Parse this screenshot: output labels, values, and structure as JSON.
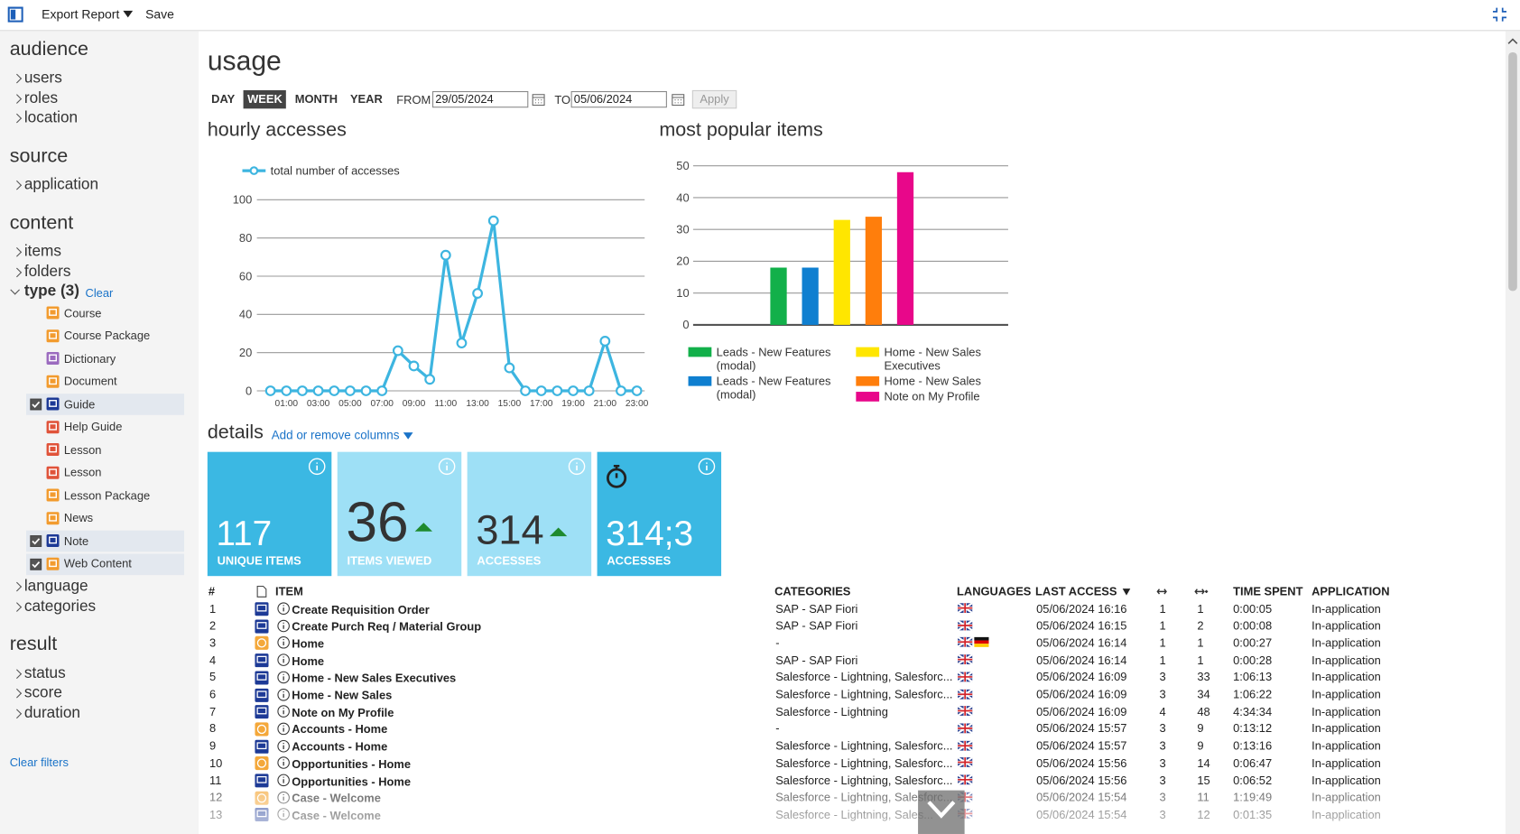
{
  "toolbar": {
    "export": "Export Report",
    "save": "Save"
  },
  "sidebar": {
    "sections": [
      {
        "title": "audience",
        "items": [
          "users",
          "roles",
          "location"
        ]
      },
      {
        "title": "source",
        "items": [
          "application"
        ]
      },
      {
        "title": "content",
        "items": [
          "items",
          "folders"
        ],
        "type": {
          "label": "type (3)",
          "clear": "Clear",
          "options": [
            {
              "label": "Course",
              "color": "#f29b2e",
              "checked": false
            },
            {
              "label": "Course Package",
              "color": "#f29b2e",
              "checked": false
            },
            {
              "label": "Dictionary",
              "color": "#9b6bbf",
              "checked": false
            },
            {
              "label": "Document",
              "color": "#f29b2e",
              "checked": false
            },
            {
              "label": "Guide",
              "color": "#1d3a96",
              "checked": true
            },
            {
              "label": "Help Guide",
              "color": "#e0533a",
              "checked": false
            },
            {
              "label": "Lesson",
              "color": "#e0533a",
              "checked": false
            },
            {
              "label": "Lesson",
              "color": "#e0533a",
              "checked": false
            },
            {
              "label": "Lesson Package",
              "color": "#f29b2e",
              "checked": false
            },
            {
              "label": "News",
              "color": "#f29b2e",
              "checked": false
            },
            {
              "label": "Note",
              "color": "#1d3a96",
              "checked": true
            },
            {
              "label": "Web Content",
              "color": "#f29b2e",
              "checked": true
            }
          ]
        },
        "after": [
          "language",
          "categories"
        ]
      },
      {
        "title": "result",
        "items": [
          "status",
          "score",
          "duration"
        ]
      }
    ],
    "clear_filters": "Clear filters"
  },
  "main": {
    "title": "usage",
    "periods": [
      {
        "label": "DAY",
        "selected": false
      },
      {
        "label": "WEEK",
        "selected": true
      },
      {
        "label": "MONTH",
        "selected": false
      },
      {
        "label": "YEAR",
        "selected": false
      }
    ],
    "from_label": "FROM",
    "from": "29/05/2024",
    "to_label": "TO",
    "to": "05/06/2024",
    "apply": "Apply",
    "line_title": "hourly accesses",
    "bar_title": "most popular items",
    "details": "details",
    "columns_link": "Add or remove columns"
  },
  "chart_data": [
    {
      "type": "line",
      "legend": "top-left",
      "grid": true,
      "categories": [
        null,
        "01:00",
        null,
        "03:00",
        null,
        "05:00",
        null,
        "07:00",
        null,
        "09:00",
        null,
        "11:00",
        null,
        "13:00",
        null,
        "15:00",
        null,
        "17:00",
        null,
        "19:00",
        null,
        "21:00",
        null,
        "23:00"
      ],
      "series": [
        {
          "name": "total number of accesses",
          "color": "#3db5e0",
          "values": [
            0,
            0,
            0,
            0,
            0,
            0,
            0,
            0,
            21,
            13,
            6,
            71,
            25,
            51,
            89,
            12,
            0,
            0,
            0,
            0,
            0,
            26,
            0,
            0
          ]
        }
      ],
      "ylim": [
        0,
        100
      ],
      "yticks": [
        0,
        20,
        40,
        60,
        80,
        100
      ]
    },
    {
      "type": "bar",
      "legend": "bottom",
      "grid": true,
      "series": [
        {
          "name": "Leads - New Features (modal)",
          "color": "#12b04a",
          "values": [
            18
          ]
        },
        {
          "name": "Leads - New Features (modal)",
          "color": "#0f7fd0",
          "values": [
            18
          ]
        },
        {
          "name": "Home - New Sales Executives",
          "color": "#ffe600",
          "values": [
            33
          ]
        },
        {
          "name": "Home - New Sales",
          "color": "#ff7e0c",
          "values": [
            34
          ]
        },
        {
          "name": "Note on My Profile",
          "color": "#e8078a",
          "values": [
            48
          ]
        }
      ],
      "ylim": [
        0,
        50
      ],
      "yticks": [
        0,
        10,
        20,
        30,
        40,
        50
      ]
    }
  ],
  "tiles": [
    {
      "value": "117",
      "label": "UNIQUE ITEMS",
      "color": "#3bb8e3",
      "trend": "none",
      "icon": "none"
    },
    {
      "value": "36",
      "label": "ITEMS VIEWED",
      "color": "#9ee0f6",
      "trend": "up",
      "icon": "none"
    },
    {
      "value": "314",
      "label": "ACCESSES",
      "color": "#9ee0f6",
      "trend": "up",
      "icon": "none"
    },
    {
      "value": "314;3",
      "label": "ACCESSES",
      "color": "#3bb8e3",
      "trend": "none",
      "icon": "stopwatch"
    }
  ],
  "table": {
    "columns": [
      "#",
      "ITEM",
      "CATEGORIES",
      "LANGUAGES",
      "LAST ACCESS",
      "TIME SPENT",
      "APPLICATION"
    ],
    "rows": [
      {
        "n": "1",
        "kind": "guide",
        "item": "Create Requisition Order",
        "categories": "SAP - SAP Fiori",
        "langs": [
          "en"
        ],
        "last": "05/06/2024 16:16",
        "c1": "1",
        "c2": "1",
        "time": "0:00:05",
        "app": "In-application"
      },
      {
        "n": "2",
        "kind": "guide",
        "item": "Create Purch Req / Material Group",
        "categories": "SAP - SAP Fiori",
        "langs": [
          "en"
        ],
        "last": "05/06/2024 16:15",
        "c1": "1",
        "c2": "2",
        "time": "0:00:08",
        "app": "In-application"
      },
      {
        "n": "3",
        "kind": "web",
        "item": "Home",
        "categories": "-",
        "langs": [
          "en",
          "de"
        ],
        "last": "05/06/2024 16:14",
        "c1": "1",
        "c2": "1",
        "time": "0:00:27",
        "app": "In-application"
      },
      {
        "n": "4",
        "kind": "guide",
        "item": "Home",
        "categories": "SAP - SAP Fiori",
        "langs": [
          "en"
        ],
        "last": "05/06/2024 16:14",
        "c1": "1",
        "c2": "1",
        "time": "0:00:28",
        "app": "In-application"
      },
      {
        "n": "5",
        "kind": "guide",
        "item": "Home - New Sales Executives",
        "categories": "Salesforce - Lightning, Salesforc...",
        "langs": [
          "en"
        ],
        "last": "05/06/2024 16:09",
        "c1": "3",
        "c2": "33",
        "time": "1:06:13",
        "app": "In-application"
      },
      {
        "n": "6",
        "kind": "guide",
        "item": "Home - New Sales",
        "categories": "Salesforce - Lightning, Salesforc...",
        "langs": [
          "en"
        ],
        "last": "05/06/2024 16:09",
        "c1": "3",
        "c2": "34",
        "time": "1:06:22",
        "app": "In-application"
      },
      {
        "n": "7",
        "kind": "guide",
        "item": "Note on My Profile",
        "categories": "Salesforce - Lightning",
        "langs": [
          "en"
        ],
        "last": "05/06/2024 16:09",
        "c1": "4",
        "c2": "48",
        "time": "4:34:34",
        "app": "In-application"
      },
      {
        "n": "8",
        "kind": "web",
        "item": "Accounts - Home",
        "categories": "-",
        "langs": [
          "en"
        ],
        "last": "05/06/2024 15:57",
        "c1": "3",
        "c2": "9",
        "time": "0:13:12",
        "app": "In-application"
      },
      {
        "n": "9",
        "kind": "guide",
        "item": "Accounts - Home",
        "categories": "Salesforce - Lightning, Salesforc...",
        "langs": [
          "en"
        ],
        "last": "05/06/2024 15:57",
        "c1": "3",
        "c2": "9",
        "time": "0:13:16",
        "app": "In-application"
      },
      {
        "n": "10",
        "kind": "web",
        "item": "Opportunities - Home",
        "categories": "Salesforce - Lightning, Salesforc...",
        "langs": [
          "en"
        ],
        "last": "05/06/2024 15:56",
        "c1": "3",
        "c2": "14",
        "time": "0:06:47",
        "app": "In-application"
      },
      {
        "n": "11",
        "kind": "guide",
        "item": "Opportunities - Home",
        "categories": "Salesforce - Lightning, Salesforc...",
        "langs": [
          "en"
        ],
        "last": "05/06/2024 15:56",
        "c1": "3",
        "c2": "15",
        "time": "0:06:52",
        "app": "In-application"
      },
      {
        "n": "12",
        "kind": "web",
        "item": "Case - Welcome",
        "categories": "Salesforce - Lightning, Salesforc...",
        "langs": [
          "en"
        ],
        "last": "05/06/2024 15:54",
        "c1": "3",
        "c2": "11",
        "time": "1:19:49",
        "app": "In-application"
      },
      {
        "n": "13",
        "kind": "guide",
        "item": "Case - Welcome",
        "categories": "Salesforce - Lightning, Sales...",
        "langs": [
          "en"
        ],
        "last": "05/06/2024 15:54",
        "c1": "3",
        "c2": "12",
        "time": "0:01:35",
        "app": "In-application"
      }
    ]
  }
}
